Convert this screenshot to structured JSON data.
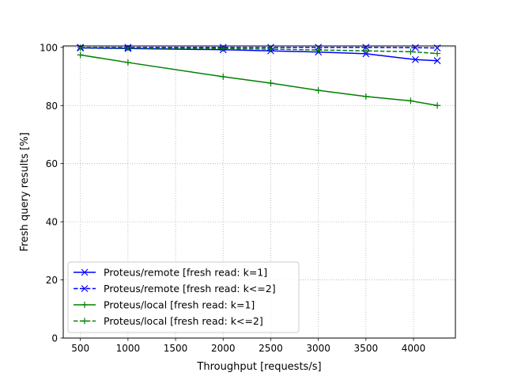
{
  "chart_data": {
    "type": "line",
    "title": "",
    "xlabel": "Throughput [requests/s]",
    "ylabel": "Fresh query results [%]",
    "xlim": [
      320,
      4440
    ],
    "ylim": [
      0,
      100.5
    ],
    "xticks": [
      500,
      1000,
      1500,
      2000,
      2500,
      3000,
      3500,
      4000
    ],
    "yticks": [
      0,
      20,
      40,
      60,
      80,
      100
    ],
    "grid": true,
    "grid_style": "dotted",
    "legend_position": "lower-left",
    "series": [
      {
        "name": "Proteus/remote [fresh read: k=1]",
        "color": "#0000ff",
        "line_style": "solid",
        "marker": "x",
        "x": [
          500,
          1000,
          2000,
          2500,
          3000,
          3500,
          4020,
          4250
        ],
        "y": [
          99.8,
          99.6,
          99.2,
          98.8,
          98.4,
          97.8,
          95.8,
          95.4
        ]
      },
      {
        "name": "Proteus/remote [fresh read: k<=2]",
        "color": "#0000ff",
        "line_style": "dashed",
        "marker": "x",
        "x": [
          500,
          1000,
          2000,
          2500,
          3000,
          3500,
          4020,
          4250
        ],
        "y": [
          100.0,
          100.0,
          100.0,
          100.0,
          100.0,
          100.0,
          99.9,
          99.8
        ]
      },
      {
        "name": "Proteus/local [fresh read: k=1]",
        "color": "#008000",
        "line_style": "solid",
        "marker": "+",
        "x": [
          500,
          1000,
          2000,
          2500,
          3000,
          3500,
          3970,
          4250
        ],
        "y": [
          97.4,
          94.8,
          89.9,
          87.7,
          85.2,
          83.1,
          81.6,
          80.0
        ]
      },
      {
        "name": "Proteus/local [fresh read: k<=2]",
        "color": "#008000",
        "line_style": "dashed",
        "marker": "+",
        "x": [
          500,
          1000,
          2000,
          2500,
          3000,
          3500,
          3970,
          4250
        ],
        "y": [
          99.9,
          99.8,
          99.6,
          99.4,
          99.1,
          98.8,
          98.5,
          97.9
        ]
      }
    ]
  }
}
